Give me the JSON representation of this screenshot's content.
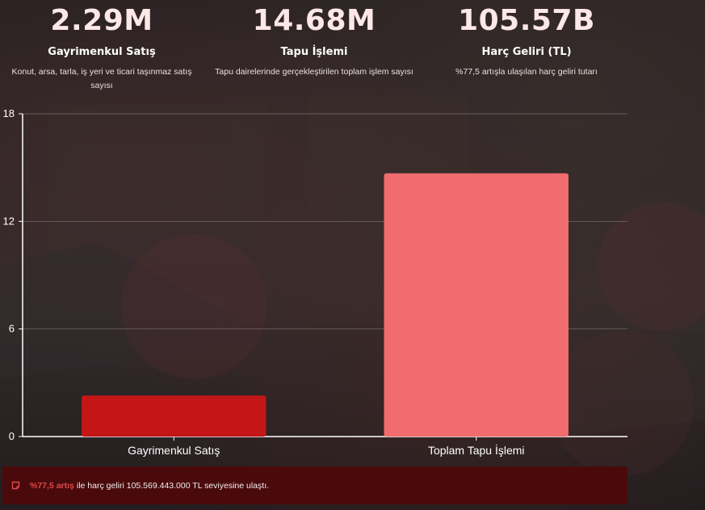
{
  "stats": [
    {
      "value": "2.29M",
      "title": "Gayrimenkul Satış",
      "desc": "Konut, arsa, tarla, iş yeri ve ticari taşınmaz satış sayısı"
    },
    {
      "value": "14.68M",
      "title": "Tapu İşlemi",
      "desc": "Tapu dairelerinde gerçekleştirilen toplam işlem sayısı"
    },
    {
      "value": "105.57B",
      "title": "Harç Geliri (TL)",
      "desc": "%77,5 artışla ulaşılan harç geliri tutarı"
    }
  ],
  "chart_data": {
    "type": "bar",
    "categories": [
      "Gayrimenkul Satış",
      "Toplam Tapu İşlemi"
    ],
    "values": [
      2.29,
      14.68
    ],
    "bar_colors": [
      "#c41617",
      "#f06c6e"
    ],
    "ylim": [
      0,
      18
    ],
    "yticks": [
      0,
      6,
      12,
      18
    ],
    "grid": true
  },
  "banner": {
    "highlight": "%77,5 artış",
    "text": "ile harç geliri 105.569.443.000 TL seviyesine ulaştı.",
    "icon": "comment-icon"
  }
}
